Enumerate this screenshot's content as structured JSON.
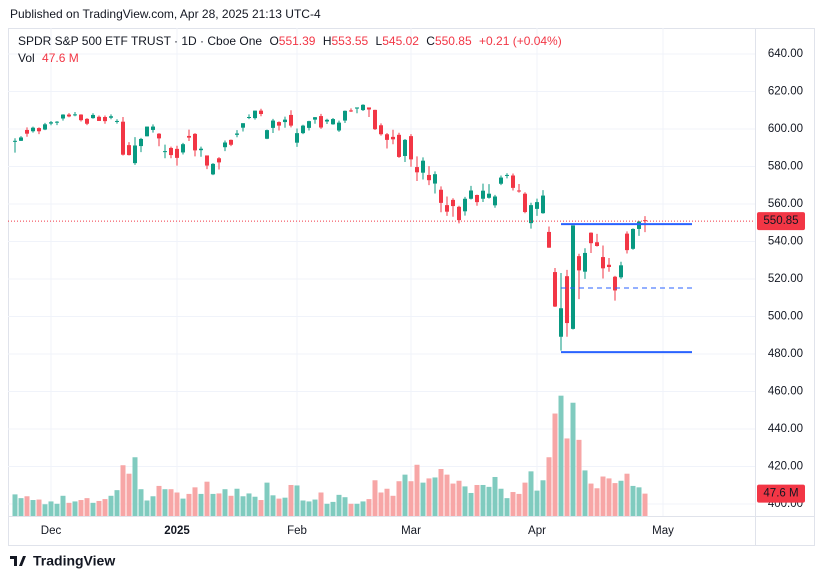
{
  "header": "Published on TradingView.com, Apr 28, 2025 21:13 UTC-4",
  "footer": "TradingView",
  "chart_data": {
    "type": "candlestick",
    "title": "SPDR S&P 500 ETF TRUST · 1D · Cboe One",
    "legend_keys": [
      "O",
      "H",
      "L",
      "C"
    ],
    "change_label": "+0.21 (+0.04%)",
    "volume_name": "Vol",
    "volume_label": "47.6 M",
    "up_color": "#089981",
    "down_color": "#f23645",
    "volume_up_color": "#80cbbf",
    "volume_down_color": "#f7a6a6",
    "level_color": "#2962ff",
    "grid": true,
    "categories": [
      null,
      null,
      null,
      null,
      null,
      null,
      "Dec",
      null,
      null,
      null,
      null,
      null,
      null,
      null,
      null,
      null,
      null,
      null,
      null,
      null,
      null,
      null,
      null,
      null,
      null,
      null,
      null,
      "2025",
      null,
      null,
      null,
      null,
      null,
      null,
      null,
      null,
      null,
      null,
      null,
      null,
      null,
      null,
      null,
      null,
      null,
      null,
      null,
      "Feb",
      null,
      null,
      null,
      null,
      null,
      null,
      null,
      null,
      null,
      null,
      null,
      null,
      null,
      null,
      null,
      null,
      null,
      null,
      "Mar",
      null,
      null,
      null,
      null,
      null,
      null,
      null,
      null,
      null,
      null,
      null,
      null,
      null,
      null,
      null,
      null,
      null,
      null,
      null,
      null,
      "Apr",
      null,
      null,
      null,
      null,
      null,
      null,
      null,
      null,
      null,
      null,
      null,
      null,
      null,
      null,
      null,
      null,
      null,
      null,
      null,
      null,
      "May"
    ],
    "open": [
      593.4,
      593.7,
      599.5,
      598.8,
      600.5,
      599.7,
      602.9,
      603.4,
      605.6,
      607.7,
      607.4,
      607.7,
      605.4,
      605.8,
      606.5,
      606.4,
      606.0,
      604.2,
      603.9,
      591.4,
      581.8,
      590.9,
      596.1,
      599.5,
      597.5,
      587.9,
      589.9,
      589.4,
      587.5,
      596.3,
      597.4,
      588.7,
      585.9,
      575.8,
      584.4,
      590.3,
      594.2,
      596.9,
      600.7,
      605.9,
      605.8,
      609.8,
      594.8,
      600.6,
      603.7,
      603.7,
      607.5,
      592.7,
      597.8,
      600.6,
      605.0,
      606.9,
      604.0,
      602.5,
      599.2,
      604.5,
      609.9,
      610.9,
      610.1,
      611.5,
      610.2,
      602.0,
      597.2,
      595.8,
      596.9,
      585.6,
      596.2,
      579.7,
      576.7,
      575.5,
      570.9,
      567.6,
      559.4,
      562.2,
      558.5,
      556.1,
      562.8,
      564.8,
      562.8,
      563.3,
      559.3,
      570.8,
      575.3,
      575.2,
      567.2,
      565.5,
      549.8,
      557.4,
      555.1,
      545.1,
      523.7,
      489.2,
      521.5,
      493.4,
      532.2,
      523.9,
      544.7,
      539.6,
      531.7,
      527.6,
      521.2,
      520.9,
      544.2,
      536.1,
      546.7,
      551.39,
      null,
      null,
      null
    ],
    "high": [
      595.1,
      596.2,
      600.9,
      601.3,
      600.9,
      603.3,
      604.3,
      604.2,
      607.9,
      608.5,
      609.1,
      607.9,
      605.8,
      608.4,
      607.2,
      607.2,
      607.8,
      605.2,
      606.4,
      593.0,
      595.7,
      595.3,
      601.3,
      602.5,
      597.8,
      591.7,
      590.6,
      591.1,
      592.6,
      599.7,
      597.8,
      590.6,
      585.9,
      581.8,
      585.0,
      593.9,
      594.4,
      599.4,
      603.1,
      607.8,
      609.8,
      610.8,
      599.7,
      605.4,
      604.1,
      606.6,
      610.0,
      600.3,
      602.3,
      604.4,
      606.4,
      608.1,
      605.5,
      605.9,
      604.5,
      609.9,
      611.0,
      611.5,
      613.2,
      611.5,
      610.3,
      603.0,
      597.9,
      599.6,
      598.0,
      594.7,
      597.3,
      585.4,
      584.9,
      580.2,
      577.4,
      569.4,
      564.0,
      563.1,
      559.1,
      563.8,
      569.7,
      565.0,
      570.9,
      570.6,
      564.9,
      575.2,
      576.4,
      576.3,
      570.7,
      566.3,
      560.7,
      562.9,
      567.4,
      548.0,
      525.9,
      523.2,
      524.9,
      548.6,
      533.5,
      536.4,
      544.9,
      544.1,
      537.9,
      531.2,
      521.7,
      529.2,
      545.4,
      547.0,
      551.0,
      553.55,
      null,
      null,
      null
    ],
    "low": [
      587.4,
      593.6,
      595.9,
      598.1,
      597.3,
      599.4,
      602.0,
      602.1,
      604.5,
      606.3,
      606.8,
      604.0,
      602.1,
      605.5,
      604.3,
      602.8,
      605.2,
      602.9,
      585.9,
      585.9,
      580.9,
      587.7,
      596.1,
      598.1,
      590.8,
      584.4,
      584.4,
      580.5,
      586.4,
      593.6,
      585.4,
      585.2,
      578.6,
      575.4,
      578.4,
      588.2,
      590.9,
      595.6,
      598.7,
      605.3,
      605.0,
      606.8,
      594.6,
      597.9,
      599.2,
      600.7,
      600.9,
      590.5,
      597.3,
      599.2,
      602.8,
      600.1,
      602.7,
      602.3,
      598.5,
      603.2,
      609.1,
      608.4,
      609.6,
      606.4,
      599.5,
      596.5,
      589.6,
      591.9,
      584.6,
      582.4,
      579.9,
      572.3,
      573.1,
      570.1,
      565.6,
      555.6,
      553.7,
      553.2,
      549.7,
      553.8,
      562.4,
      559.1,
      561.1,
      562.9,
      558.0,
      570.1,
      573.7,
      567.2,
      566.1,
      555.1,
      546.9,
      553.7,
      554.8,
      536.7,
      505.1,
      481.8,
      489.2,
      493.1,
      509.3,
      520.1,
      533.9,
      537.3,
      520.3,
      523.9,
      508.5,
      520.1,
      533.6,
      535.6,
      543.0,
      545.02,
      null,
      null,
      null
    ],
    "close": [
      593.7,
      595.5,
      597.5,
      600.7,
      598.8,
      602.5,
      603.6,
      603.9,
      607.7,
      606.7,
      607.8,
      604.7,
      602.8,
      607.5,
      604.3,
      604.2,
      606.8,
      604.3,
      586.3,
      586.1,
      591.2,
      594.7,
      601.3,
      601.3,
      595.0,
      588.2,
      586.1,
      584.6,
      591.9,
      595.4,
      588.6,
      589.5,
      580.5,
      581.4,
      582.2,
      592.8,
      591.6,
      597.6,
      603.1,
      606.4,
      609.8,
      608.0,
      599.4,
      604.5,
      601.8,
      605.0,
      601.8,
      597.8,
      601.8,
      604.2,
      606.3,
      600.8,
      604.9,
      605.3,
      603.4,
      609.7,
      609.7,
      611.5,
      612.9,
      610.4,
      599.9,
      597.2,
      594.2,
      594.5,
      585.1,
      594.2,
      583.8,
      576.9,
      583.1,
      572.7,
      575.9,
      560.6,
      555.9,
      558.9,
      551.4,
      562.8,
      567.2,
      561.0,
      567.1,
      565.5,
      564.0,
      574.1,
      575.5,
      568.6,
      567.1,
      555.7,
      559.4,
      561.0,
      564.5,
      536.7,
      505.3,
      504.4,
      496.5,
      548.6,
      524.6,
      533.9,
      539.1,
      537.6,
      525.7,
      526.4,
      513.9,
      527.3,
      535.4,
      546.7,
      550.64,
      550.85,
      null,
      null,
      null
    ],
    "volume": [
      46,
      38,
      42,
      34,
      35,
      25,
      31,
      26,
      43,
      28,
      31,
      34,
      38,
      28,
      32,
      36,
      43,
      55,
      108,
      90,
      125,
      57,
      33,
      42,
      64,
      57,
      57,
      50,
      37,
      47,
      61,
      47,
      73,
      47,
      48,
      57,
      43,
      58,
      42,
      48,
      41,
      34,
      71,
      44,
      37,
      39,
      66,
      65,
      33,
      31,
      35,
      50,
      26,
      30,
      45,
      40,
      26,
      26,
      31,
      36,
      76,
      50,
      58,
      43,
      74,
      88,
      74,
      109,
      71,
      80,
      82,
      100,
      88,
      69,
      75,
      63,
      49,
      66,
      66,
      62,
      83,
      58,
      38,
      51,
      47,
      71,
      95,
      54,
      76,
      125,
      218,
      256,
      165,
      241,
      162,
      97,
      69,
      59,
      84,
      80,
      70,
      75,
      90,
      64,
      61,
      47.6,
      null,
      null,
      null
    ],
    "ylim": [
      393.6,
      653.87
    ],
    "yticks": [
      {
        "value": 400,
        "label": "400.00"
      },
      {
        "value": 420,
        "label": "420.00"
      },
      {
        "value": 440,
        "label": "440.00"
      },
      {
        "value": 460,
        "label": "460.00"
      },
      {
        "value": 480,
        "label": "480.00"
      },
      {
        "value": 500,
        "label": "500.00"
      },
      {
        "value": 520,
        "label": "520.00"
      },
      {
        "value": 540,
        "label": "540.00"
      },
      {
        "value": 560,
        "label": "560.00"
      },
      {
        "value": 580,
        "label": "580.00"
      },
      {
        "value": 600,
        "label": "600.00"
      },
      {
        "value": 620,
        "label": "620.00"
      },
      {
        "value": 640,
        "label": "640.00"
      }
    ],
    "levels": [
      {
        "value": 549.3,
        "dashed": false
      },
      {
        "value": 515.2,
        "dashed": true
      },
      {
        "value": 481.0,
        "dashed": false
      }
    ]
  }
}
